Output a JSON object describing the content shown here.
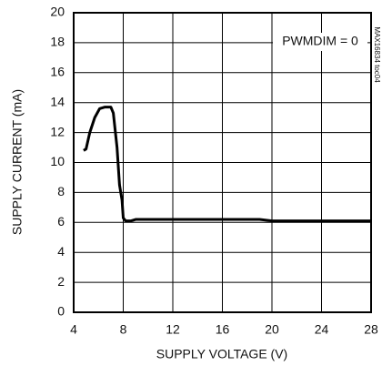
{
  "chart_data": {
    "type": "line",
    "xlabel": "SUPPLY VOLTAGE (V)",
    "ylabel": "SUPPLY CURRENT (mA)",
    "annotation": "PWMDIM = 0",
    "watermark": "MAX16834 toc04",
    "x": [
      4.8,
      5.0,
      5.3,
      5.7,
      6.1,
      6.5,
      7.0,
      7.2,
      7.5,
      7.7,
      7.9,
      8.0,
      8.2,
      8.6,
      9.0,
      12,
      16,
      19,
      20,
      24,
      28
    ],
    "series": [
      {
        "color": "#000000",
        "values": [
          10.8,
          10.9,
          12,
          13,
          13.6,
          13.7,
          13.7,
          13.3,
          11,
          8.5,
          7.5,
          6.3,
          6.1,
          6.1,
          6.2,
          6.2,
          6.2,
          6.2,
          6.1,
          6.1,
          6.1
        ]
      }
    ],
    "xlim": [
      4,
      28
    ],
    "xticks": [
      4,
      8,
      12,
      16,
      20,
      24,
      28
    ],
    "ylim": [
      0,
      20
    ],
    "yticks": [
      0,
      2,
      4,
      6,
      8,
      10,
      12,
      14,
      16,
      18,
      20
    ],
    "grid": true
  }
}
